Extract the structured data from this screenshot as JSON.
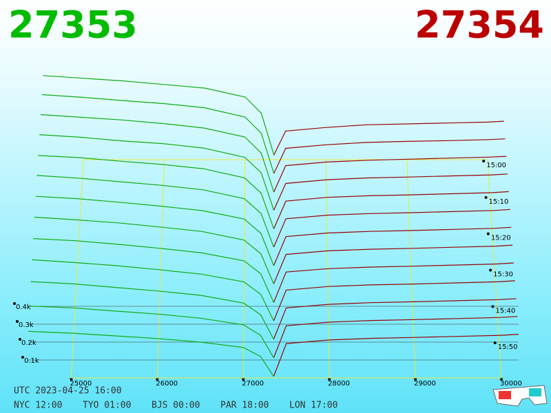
{
  "chart_data": {
    "type": "depth3d",
    "bid_label": "27353",
    "ask_label": "27354",
    "bid_color": "#11aa11",
    "ask_color": "#990000",
    "xlim": [
      24500,
      30200
    ],
    "xticks": [
      25000,
      26000,
      27000,
      28000,
      29000,
      30000
    ],
    "zlim": [
      0,
      500
    ],
    "zticks": [
      {
        "value": 100,
        "label": "0.1k"
      },
      {
        "value": 200,
        "label": "0.2k"
      },
      {
        "value": 300,
        "label": "0.3k"
      },
      {
        "value": 400,
        "label": "0.4k"
      }
    ],
    "tlim": [
      0,
      60
    ],
    "time_ticks": [
      {
        "value": 0,
        "label": "15:00"
      },
      {
        "value": 10,
        "label": "15:10"
      },
      {
        "value": 20,
        "label": "15:20"
      },
      {
        "value": 30,
        "label": "15:30"
      },
      {
        "value": 40,
        "label": "15:40"
      },
      {
        "value": 50,
        "label": "15:50"
      }
    ],
    "bid_prices": [
      24500,
      25000,
      25500,
      26000,
      26500,
      27000,
      27200,
      27353
    ],
    "ask_prices": [
      27354,
      27500,
      28000,
      28500,
      29000,
      29500,
      30000,
      30200
    ],
    "rows": [
      {
        "minute": 0,
        "bids": [
          470,
          455,
          440,
          420,
          400,
          350,
          260,
          30
        ],
        "asks": [
          25,
          160,
          180,
          195,
          200,
          205,
          210,
          215
        ]
      },
      {
        "minute": 5,
        "bids": [
          465,
          450,
          432,
          415,
          392,
          340,
          250,
          28
        ],
        "asks": [
          24,
          165,
          185,
          198,
          204,
          208,
          214,
          218
        ]
      },
      {
        "minute": 10,
        "bids": [
          455,
          440,
          425,
          405,
          380,
          330,
          240,
          25
        ],
        "asks": [
          22,
          170,
          190,
          200,
          206,
          212,
          218,
          222
        ]
      },
      {
        "minute": 15,
        "bids": [
          445,
          430,
          410,
          395,
          370,
          318,
          232,
          24
        ],
        "asks": [
          22,
          172,
          193,
          203,
          208,
          214,
          220,
          225
        ]
      },
      {
        "minute": 20,
        "bids": [
          430,
          418,
          398,
          380,
          356,
          305,
          220,
          22
        ],
        "asks": [
          20,
          175,
          196,
          205,
          210,
          216,
          222,
          228
        ]
      },
      {
        "minute": 25,
        "bids": [
          420,
          405,
          385,
          365,
          340,
          290,
          208,
          20
        ],
        "asks": [
          20,
          178,
          198,
          207,
          212,
          218,
          224,
          230
        ]
      },
      {
        "minute": 30,
        "bids": [
          405,
          392,
          372,
          350,
          325,
          278,
          198,
          18
        ],
        "asks": [
          18,
          180,
          200,
          209,
          214,
          220,
          226,
          232
        ]
      },
      {
        "minute": 35,
        "bids": [
          390,
          375,
          358,
          335,
          310,
          262,
          186,
          17
        ],
        "asks": [
          18,
          182,
          202,
          211,
          216,
          222,
          228,
          234
        ]
      },
      {
        "minute": 40,
        "bids": [
          372,
          360,
          340,
          318,
          292,
          248,
          175,
          15
        ],
        "asks": [
          16,
          185,
          204,
          213,
          218,
          224,
          230,
          236
        ]
      },
      {
        "minute": 45,
        "bids": [
          355,
          340,
          322,
          300,
          275,
          232,
          162,
          14
        ],
        "asks": [
          15,
          186,
          206,
          215,
          220,
          226,
          232,
          238
        ]
      },
      {
        "minute": 50,
        "bids": [
          335,
          322,
          302,
          282,
          258,
          215,
          150,
          12
        ],
        "asks": [
          14,
          188,
          208,
          217,
          222,
          228,
          234,
          240
        ]
      },
      {
        "minute": 55,
        "bids": [
          300,
          290,
          272,
          255,
          232,
          195,
          136,
          10
        ],
        "asks": [
          12,
          190,
          210,
          219,
          224,
          230,
          236,
          242
        ]
      },
      {
        "minute": 60,
        "bids": [
          260,
          250,
          235,
          220,
          200,
          170,
          120,
          8
        ],
        "asks": [
          10,
          192,
          212,
          221,
          226,
          232,
          238,
          244
        ]
      }
    ],
    "utc": "UTC 2023-04-25 16:00",
    "clocks": [
      "NYC 12:00",
      "TYO 01:00",
      "BJS 00:00",
      "PAR 18:00",
      "LON 17:00"
    ]
  }
}
